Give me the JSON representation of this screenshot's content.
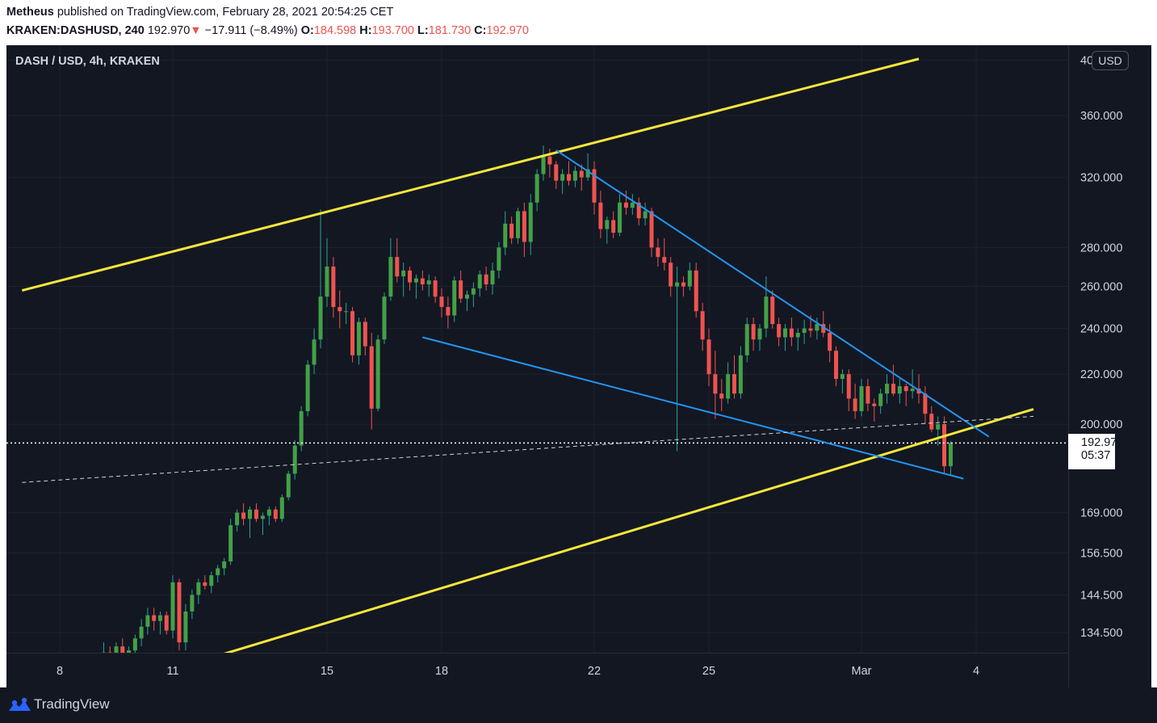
{
  "header": {
    "author": "Metheus",
    "published_text": "published on TradingView.com, February 28, 2021 20:54:25 CET",
    "symbol": "KRAKEN:DASHUSD, 240",
    "last": "192.970",
    "change_arrow": "▼",
    "change": "−17.911 (−8.49%)",
    "o_label": "O:",
    "o_value": "184.598",
    "h_label": "H:",
    "h_value": "193.700",
    "l_label": "L:",
    "l_value": "181.730",
    "c_label": "C:",
    "c_value": "192.970"
  },
  "chart_title": "DASH / USD, 4h, KRAKEN",
  "currency": "USD",
  "price_label": {
    "price": "192.970",
    "countdown": "05:37"
  },
  "footer": {
    "brand": "TradingView"
  },
  "colors": {
    "background": "#131722",
    "up": "#26a69a",
    "up_body": "#2e7d32",
    "down": "#ef5350",
    "channel": "#f6e73b",
    "wedge": "#2196f3",
    "grid": "#1e222d",
    "text": "#d1d4dc"
  },
  "chart_data": {
    "type": "candlestick",
    "title": "DASH / USD, 4h, KRAKEN",
    "y_scale": "log",
    "ylim": [
      128,
      405
    ],
    "y_ticks": [
      "400.000",
      "360.000",
      "320.000",
      "280.000",
      "260.000",
      "240.000",
      "220.000",
      "200.000",
      "169.000",
      "156.500",
      "144.500",
      "134.500"
    ],
    "y_tick_values": [
      400,
      360,
      320,
      280,
      260,
      240,
      220,
      200,
      169,
      156.5,
      144.5,
      134.5
    ],
    "x_ticks": [
      "8",
      "11",
      "15",
      "18",
      "22",
      "25",
      "Mar",
      "4"
    ],
    "x_tick_dates": [
      "2021-02-08",
      "2021-02-11",
      "2021-02-15",
      "2021-02-18",
      "2021-02-22",
      "2021-02-25",
      "2021-03-01",
      "2021-03-04"
    ],
    "xlim": [
      "2021-02-07",
      "2021-03-06"
    ],
    "last_price": 192.97,
    "candles": [
      {
        "t": "2021-02-09 04:00",
        "o": 127,
        "h": 132,
        "l": 125,
        "c": 129.5
      },
      {
        "t": "2021-02-09 08:00",
        "o": 129.5,
        "h": 131,
        "l": 126,
        "c": 128
      },
      {
        "t": "2021-02-09 12:00",
        "o": 128,
        "h": 132,
        "l": 127,
        "c": 131
      },
      {
        "t": "2021-02-09 16:00",
        "o": 131,
        "h": 133,
        "l": 128,
        "c": 129
      },
      {
        "t": "2021-02-09 20:00",
        "o": 129,
        "h": 131,
        "l": 126,
        "c": 130
      },
      {
        "t": "2021-02-10 00:00",
        "o": 130,
        "h": 134,
        "l": 128,
        "c": 133
      },
      {
        "t": "2021-02-10 04:00",
        "o": 133,
        "h": 138,
        "l": 131,
        "c": 136
      },
      {
        "t": "2021-02-10 08:00",
        "o": 136,
        "h": 141,
        "l": 134,
        "c": 139
      },
      {
        "t": "2021-02-10 12:00",
        "o": 139,
        "h": 141,
        "l": 135,
        "c": 137.5
      },
      {
        "t": "2021-02-10 16:00",
        "o": 137.5,
        "h": 140,
        "l": 134,
        "c": 139
      },
      {
        "t": "2021-02-10 20:00",
        "o": 139,
        "h": 140,
        "l": 134,
        "c": 135
      },
      {
        "t": "2021-02-11 00:00",
        "o": 135,
        "h": 150,
        "l": 133,
        "c": 148
      },
      {
        "t": "2021-02-11 04:00",
        "o": 148,
        "h": 149,
        "l": 130,
        "c": 132
      },
      {
        "t": "2021-02-11 08:00",
        "o": 132,
        "h": 142,
        "l": 130,
        "c": 140
      },
      {
        "t": "2021-02-11 12:00",
        "o": 140,
        "h": 146,
        "l": 138,
        "c": 144.5
      },
      {
        "t": "2021-02-11 16:00",
        "o": 144.5,
        "h": 149,
        "l": 142,
        "c": 148
      },
      {
        "t": "2021-02-11 20:00",
        "o": 148,
        "h": 150,
        "l": 146,
        "c": 147
      },
      {
        "t": "2021-02-12 00:00",
        "o": 147,
        "h": 151,
        "l": 145,
        "c": 150
      },
      {
        "t": "2021-02-12 04:00",
        "o": 150,
        "h": 153,
        "l": 148,
        "c": 152
      },
      {
        "t": "2021-02-12 08:00",
        "o": 152,
        "h": 155,
        "l": 150,
        "c": 154
      },
      {
        "t": "2021-02-12 12:00",
        "o": 154,
        "h": 167,
        "l": 153,
        "c": 165
      },
      {
        "t": "2021-02-12 16:00",
        "o": 165,
        "h": 170,
        "l": 163,
        "c": 169
      },
      {
        "t": "2021-02-12 20:00",
        "o": 169,
        "h": 172,
        "l": 165,
        "c": 167
      },
      {
        "t": "2021-02-13 00:00",
        "o": 167,
        "h": 171,
        "l": 161,
        "c": 170
      },
      {
        "t": "2021-02-13 04:00",
        "o": 170,
        "h": 172,
        "l": 166,
        "c": 167
      },
      {
        "t": "2021-02-13 08:00",
        "o": 167,
        "h": 169,
        "l": 162,
        "c": 168
      },
      {
        "t": "2021-02-13 12:00",
        "o": 168,
        "h": 171,
        "l": 165,
        "c": 170
      },
      {
        "t": "2021-02-13 16:00",
        "o": 170,
        "h": 171,
        "l": 166,
        "c": 167
      },
      {
        "t": "2021-02-13 20:00",
        "o": 167,
        "h": 175,
        "l": 166,
        "c": 174
      },
      {
        "t": "2021-02-14 00:00",
        "o": 174,
        "h": 183,
        "l": 173,
        "c": 182
      },
      {
        "t": "2021-02-14 04:00",
        "o": 182,
        "h": 194,
        "l": 180,
        "c": 192
      },
      {
        "t": "2021-02-14 08:00",
        "o": 192,
        "h": 207,
        "l": 190,
        "c": 205
      },
      {
        "t": "2021-02-14 12:00",
        "o": 205,
        "h": 226,
        "l": 203,
        "c": 224
      },
      {
        "t": "2021-02-14 16:00",
        "o": 224,
        "h": 240,
        "l": 220,
        "c": 235
      },
      {
        "t": "2021-02-14 20:00",
        "o": 235,
        "h": 301,
        "l": 231,
        "c": 255
      },
      {
        "t": "2021-02-15 00:00",
        "o": 255,
        "h": 285,
        "l": 250,
        "c": 270
      },
      {
        "t": "2021-02-15 04:00",
        "o": 270,
        "h": 275,
        "l": 245,
        "c": 250
      },
      {
        "t": "2021-02-15 08:00",
        "o": 250,
        "h": 258,
        "l": 240,
        "c": 248
      },
      {
        "t": "2021-02-15 12:00",
        "o": 248,
        "h": 252,
        "l": 242,
        "c": 248
      },
      {
        "t": "2021-02-15 16:00",
        "o": 248,
        "h": 250,
        "l": 225,
        "c": 228
      },
      {
        "t": "2021-02-15 20:00",
        "o": 228,
        "h": 245,
        "l": 224,
        "c": 243
      },
      {
        "t": "2021-02-16 00:00",
        "o": 243,
        "h": 245,
        "l": 228,
        "c": 232
      },
      {
        "t": "2021-02-16 04:00",
        "o": 232,
        "h": 238,
        "l": 198,
        "c": 206
      },
      {
        "t": "2021-02-16 08:00",
        "o": 206,
        "h": 237,
        "l": 205,
        "c": 235
      },
      {
        "t": "2021-02-16 12:00",
        "o": 235,
        "h": 257,
        "l": 233,
        "c": 255
      },
      {
        "t": "2021-02-16 16:00",
        "o": 255,
        "h": 285,
        "l": 253,
        "c": 275
      },
      {
        "t": "2021-02-16 20:00",
        "o": 275,
        "h": 285,
        "l": 262,
        "c": 265
      },
      {
        "t": "2021-02-17 00:00",
        "o": 265,
        "h": 272,
        "l": 255,
        "c": 268
      },
      {
        "t": "2021-02-17 04:00",
        "o": 268,
        "h": 270,
        "l": 258,
        "c": 262
      },
      {
        "t": "2021-02-17 08:00",
        "o": 262,
        "h": 266,
        "l": 254,
        "c": 264
      },
      {
        "t": "2021-02-17 12:00",
        "o": 264,
        "h": 268,
        "l": 258,
        "c": 261
      },
      {
        "t": "2021-02-17 16:00",
        "o": 261,
        "h": 266,
        "l": 255,
        "c": 263
      },
      {
        "t": "2021-02-17 20:00",
        "o": 263,
        "h": 265,
        "l": 252,
        "c": 255
      },
      {
        "t": "2021-02-18 00:00",
        "o": 255,
        "h": 259,
        "l": 245,
        "c": 250
      },
      {
        "t": "2021-02-18 04:00",
        "o": 250,
        "h": 255,
        "l": 240,
        "c": 246
      },
      {
        "t": "2021-02-18 08:00",
        "o": 246,
        "h": 265,
        "l": 243,
        "c": 263
      },
      {
        "t": "2021-02-18 12:00",
        "o": 263,
        "h": 268,
        "l": 252,
        "c": 254
      },
      {
        "t": "2021-02-18 16:00",
        "o": 254,
        "h": 258,
        "l": 248,
        "c": 256
      },
      {
        "t": "2021-02-18 20:00",
        "o": 256,
        "h": 262,
        "l": 250,
        "c": 259
      },
      {
        "t": "2021-02-19 00:00",
        "o": 259,
        "h": 268,
        "l": 255,
        "c": 266
      },
      {
        "t": "2021-02-19 04:00",
        "o": 266,
        "h": 270,
        "l": 258,
        "c": 261
      },
      {
        "t": "2021-02-19 08:00",
        "o": 261,
        "h": 272,
        "l": 256,
        "c": 268
      },
      {
        "t": "2021-02-19 12:00",
        "o": 268,
        "h": 283,
        "l": 264,
        "c": 280
      },
      {
        "t": "2021-02-19 16:00",
        "o": 280,
        "h": 300,
        "l": 276,
        "c": 293
      },
      {
        "t": "2021-02-19 20:00",
        "o": 293,
        "h": 297,
        "l": 282,
        "c": 285
      },
      {
        "t": "2021-02-20 00:00",
        "o": 285,
        "h": 302,
        "l": 282,
        "c": 300
      },
      {
        "t": "2021-02-20 04:00",
        "o": 300,
        "h": 305,
        "l": 275,
        "c": 283
      },
      {
        "t": "2021-02-20 08:00",
        "o": 283,
        "h": 310,
        "l": 276,
        "c": 305
      },
      {
        "t": "2021-02-20 12:00",
        "o": 305,
        "h": 325,
        "l": 300,
        "c": 322
      },
      {
        "t": "2021-02-20 16:00",
        "o": 322,
        "h": 340,
        "l": 318,
        "c": 333
      },
      {
        "t": "2021-02-20 20:00",
        "o": 333,
        "h": 338,
        "l": 320,
        "c": 328
      },
      {
        "t": "2021-02-21 00:00",
        "o": 328,
        "h": 330,
        "l": 313,
        "c": 318
      },
      {
        "t": "2021-02-21 04:00",
        "o": 318,
        "h": 325,
        "l": 310,
        "c": 322
      },
      {
        "t": "2021-02-21 08:00",
        "o": 322,
        "h": 330,
        "l": 315,
        "c": 318
      },
      {
        "t": "2021-02-21 12:00",
        "o": 318,
        "h": 327,
        "l": 314,
        "c": 324
      },
      {
        "t": "2021-02-21 16:00",
        "o": 324,
        "h": 328,
        "l": 312,
        "c": 320
      },
      {
        "t": "2021-02-21 20:00",
        "o": 320,
        "h": 335,
        "l": 318,
        "c": 325
      },
      {
        "t": "2021-02-22 00:00",
        "o": 325,
        "h": 330,
        "l": 298,
        "c": 305
      },
      {
        "t": "2021-02-22 04:00",
        "o": 305,
        "h": 312,
        "l": 285,
        "c": 290
      },
      {
        "t": "2021-02-22 08:00",
        "o": 290,
        "h": 297,
        "l": 282,
        "c": 295
      },
      {
        "t": "2021-02-22 12:00",
        "o": 295,
        "h": 300,
        "l": 285,
        "c": 288
      },
      {
        "t": "2021-02-22 16:00",
        "o": 288,
        "h": 310,
        "l": 286,
        "c": 305
      },
      {
        "t": "2021-02-22 20:00",
        "o": 305,
        "h": 312,
        "l": 298,
        "c": 302
      },
      {
        "t": "2021-02-23 00:00",
        "o": 302,
        "h": 310,
        "l": 298,
        "c": 305
      },
      {
        "t": "2021-02-23 04:00",
        "o": 305,
        "h": 308,
        "l": 292,
        "c": 296
      },
      {
        "t": "2021-02-23 08:00",
        "o": 296,
        "h": 305,
        "l": 292,
        "c": 300
      },
      {
        "t": "2021-02-23 12:00",
        "o": 300,
        "h": 302,
        "l": 275,
        "c": 280
      },
      {
        "t": "2021-02-23 16:00",
        "o": 280,
        "h": 285,
        "l": 270,
        "c": 275
      },
      {
        "t": "2021-02-23 20:00",
        "o": 275,
        "h": 285,
        "l": 268,
        "c": 272
      },
      {
        "t": "2021-02-24 00:00",
        "o": 272,
        "h": 275,
        "l": 255,
        "c": 260
      },
      {
        "t": "2021-02-24 04:00",
        "o": 260,
        "h": 270,
        "l": 190,
        "c": 262
      },
      {
        "t": "2021-02-24 08:00",
        "o": 262,
        "h": 265,
        "l": 255,
        "c": 260
      },
      {
        "t": "2021-02-24 12:00",
        "o": 260,
        "h": 272,
        "l": 258,
        "c": 268
      },
      {
        "t": "2021-02-24 16:00",
        "o": 268,
        "h": 272,
        "l": 245,
        "c": 248
      },
      {
        "t": "2021-02-24 20:00",
        "o": 248,
        "h": 252,
        "l": 230,
        "c": 235
      },
      {
        "t": "2021-02-25 00:00",
        "o": 235,
        "h": 240,
        "l": 215,
        "c": 220
      },
      {
        "t": "2021-02-25 04:00",
        "o": 220,
        "h": 230,
        "l": 202,
        "c": 212
      },
      {
        "t": "2021-02-25 08:00",
        "o": 212,
        "h": 218,
        "l": 205,
        "c": 210
      },
      {
        "t": "2021-02-25 12:00",
        "o": 210,
        "h": 225,
        "l": 208,
        "c": 220
      },
      {
        "t": "2021-02-25 16:00",
        "o": 220,
        "h": 228,
        "l": 210,
        "c": 212
      },
      {
        "t": "2021-02-25 20:00",
        "o": 212,
        "h": 232,
        "l": 210,
        "c": 228
      },
      {
        "t": "2021-02-26 00:00",
        "o": 228,
        "h": 245,
        "l": 225,
        "c": 242
      },
      {
        "t": "2021-02-26 04:00",
        "o": 242,
        "h": 245,
        "l": 230,
        "c": 235
      },
      {
        "t": "2021-02-26 08:00",
        "o": 235,
        "h": 242,
        "l": 230,
        "c": 240
      },
      {
        "t": "2021-02-26 12:00",
        "o": 240,
        "h": 265,
        "l": 236,
        "c": 255
      },
      {
        "t": "2021-02-26 16:00",
        "o": 255,
        "h": 258,
        "l": 240,
        "c": 242
      },
      {
        "t": "2021-02-26 20:00",
        "o": 242,
        "h": 245,
        "l": 232,
        "c": 236
      },
      {
        "t": "2021-02-27 00:00",
        "o": 236,
        "h": 242,
        "l": 230,
        "c": 240
      },
      {
        "t": "2021-02-27 04:00",
        "o": 240,
        "h": 245,
        "l": 232,
        "c": 236
      },
      {
        "t": "2021-02-27 08:00",
        "o": 236,
        "h": 240,
        "l": 230,
        "c": 238
      },
      {
        "t": "2021-02-27 12:00",
        "o": 238,
        "h": 244,
        "l": 233,
        "c": 240
      },
      {
        "t": "2021-02-27 16:00",
        "o": 240,
        "h": 246,
        "l": 236,
        "c": 239
      },
      {
        "t": "2021-02-27 20:00",
        "o": 239,
        "h": 245,
        "l": 235,
        "c": 242
      },
      {
        "t": "2021-02-28 00:00",
        "o": 242,
        "h": 248,
        "l": 236,
        "c": 238
      },
      {
        "t": "2021-02-28 04:00",
        "o": 238,
        "h": 242,
        "l": 225,
        "c": 230
      },
      {
        "t": "2021-02-28 08:00",
        "o": 230,
        "h": 232,
        "l": 215,
        "c": 218
      },
      {
        "t": "2021-02-28 12:00",
        "o": 218,
        "h": 222,
        "l": 212,
        "c": 220
      },
      {
        "t": "2021-02-28 16:00",
        "o": 220,
        "h": 222,
        "l": 205,
        "c": 210
      },
      {
        "t": "2021-02-28 20:00",
        "o": 210,
        "h": 216,
        "l": 202,
        "c": 205
      },
      {
        "t": "2021-03-01 00:00",
        "o": 205,
        "h": 218,
        "l": 203,
        "c": 215
      },
      {
        "t": "2021-03-01 04:00",
        "o": 215,
        "h": 218,
        "l": 205,
        "c": 208
      },
      {
        "t": "2021-03-01 08:00",
        "o": 208,
        "h": 210,
        "l": 201,
        "c": 207
      },
      {
        "t": "2021-03-01 12:00",
        "o": 207,
        "h": 214,
        "l": 204,
        "c": 212
      },
      {
        "t": "2021-03-01 16:00",
        "o": 212,
        "h": 220,
        "l": 208,
        "c": 216
      },
      {
        "t": "2021-03-01 20:00",
        "o": 216,
        "h": 224,
        "l": 211,
        "c": 212
      },
      {
        "t": "2021-03-02 00:00",
        "o": 212,
        "h": 218,
        "l": 208,
        "c": 215
      },
      {
        "t": "2021-03-02 04:00",
        "o": 215,
        "h": 216,
        "l": 207,
        "c": 213
      },
      {
        "t": "2021-03-02 08:00",
        "o": 213,
        "h": 222,
        "l": 210,
        "c": 214
      },
      {
        "t": "2021-03-02 12:00",
        "o": 214,
        "h": 220,
        "l": 208,
        "c": 212
      },
      {
        "t": "2021-03-02 16:00",
        "o": 212,
        "h": 215,
        "l": 200,
        "c": 204
      },
      {
        "t": "2021-03-02 20:00",
        "o": 204,
        "h": 207,
        "l": 197,
        "c": 198
      },
      {
        "t": "2021-03-03 00:00",
        "o": 198,
        "h": 203,
        "l": 192,
        "c": 200
      },
      {
        "t": "2021-03-03 04:00",
        "o": 200,
        "h": 203,
        "l": 182,
        "c": 184.6
      },
      {
        "t": "2021-03-03 08:00",
        "o": 184.6,
        "h": 193.7,
        "l": 181.73,
        "c": 192.97
      }
    ],
    "drawings": [
      {
        "name": "upper-channel-line",
        "color": "#f6e73b",
        "points": [
          [
            "2021-02-07 00:00",
            258
          ],
          [
            "2021-03-02 12:00",
            401
          ]
        ]
      },
      {
        "name": "lower-channel-line",
        "color": "#f6e73b",
        "points": [
          [
            "2021-02-12 00:00",
            128.2
          ],
          [
            "2021-03-05 12:00",
            205.8
          ]
        ]
      },
      {
        "name": "wedge-top-line",
        "color": "#2196f3",
        "points": [
          [
            "2021-02-21 00:00",
            337
          ],
          [
            "2021-03-04 08:00",
            195.3
          ]
        ]
      },
      {
        "name": "wedge-bottom-line",
        "color": "#2196f3",
        "points": [
          [
            "2021-02-17 12:00",
            236
          ],
          [
            "2021-03-03 16:00",
            180.3
          ]
        ]
      },
      {
        "name": "dashed-trend-line",
        "color": "#d1d4dc",
        "dashed": true,
        "points": [
          [
            "2021-02-07 00:00",
            179
          ],
          [
            "2021-03-05 12:00",
            203
          ]
        ]
      }
    ]
  }
}
